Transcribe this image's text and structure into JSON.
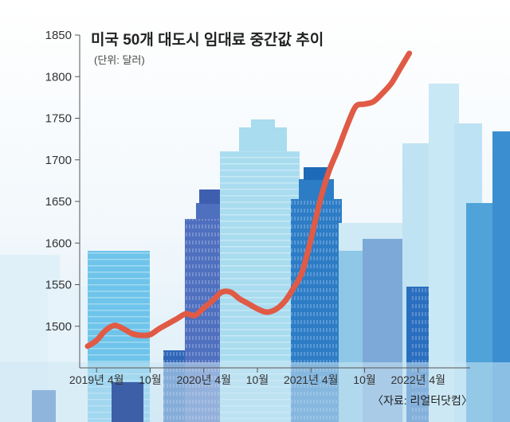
{
  "chart_data": {
    "type": "line",
    "title": "미국 50개 대도시 임대료 중간값 추이",
    "subtitle": "(단위: 달러)",
    "source": "〈자료: 리얼터닷컴〉",
    "ylim": [
      1450,
      1850
    ],
    "yticks": [
      1500,
      1550,
      1600,
      1650,
      1700,
      1750,
      1800,
      1850
    ],
    "xlim": [
      "2019-03",
      "2022-05"
    ],
    "xticks": [
      {
        "date": "2019-04",
        "label": "2019년 4월"
      },
      {
        "date": "2019-10",
        "label": "10월"
      },
      {
        "date": "2020-04",
        "label": "2020년 4월"
      },
      {
        "date": "2020-10",
        "label": "10월"
      },
      {
        "date": "2021-04",
        "label": "2021년 4월"
      },
      {
        "date": "2021-10",
        "label": "10월"
      },
      {
        "date": "2022-04",
        "label": "2022년 4월"
      }
    ],
    "series": [
      {
        "color": "#e05a45",
        "points": [
          {
            "x": "2019-03",
            "y": 1476
          },
          {
            "x": "2019-04",
            "y": 1483
          },
          {
            "x": "2019-05",
            "y": 1495
          },
          {
            "x": "2019-06",
            "y": 1501
          },
          {
            "x": "2019-07",
            "y": 1497
          },
          {
            "x": "2019-08",
            "y": 1491
          },
          {
            "x": "2019-09",
            "y": 1489
          },
          {
            "x": "2019-10",
            "y": 1490
          },
          {
            "x": "2019-11",
            "y": 1497
          },
          {
            "x": "2019-12",
            "y": 1503
          },
          {
            "x": "2020-01",
            "y": 1509
          },
          {
            "x": "2020-02",
            "y": 1515
          },
          {
            "x": "2020-03",
            "y": 1513
          },
          {
            "x": "2020-04",
            "y": 1522
          },
          {
            "x": "2020-05",
            "y": 1531
          },
          {
            "x": "2020-06",
            "y": 1541
          },
          {
            "x": "2020-07",
            "y": 1541
          },
          {
            "x": "2020-08",
            "y": 1533
          },
          {
            "x": "2020-09",
            "y": 1527
          },
          {
            "x": "2020-10",
            "y": 1521
          },
          {
            "x": "2020-11",
            "y": 1517
          },
          {
            "x": "2020-12",
            "y": 1520
          },
          {
            "x": "2021-01",
            "y": 1529
          },
          {
            "x": "2021-02",
            "y": 1545
          },
          {
            "x": "2021-03",
            "y": 1565
          },
          {
            "x": "2021-04",
            "y": 1605
          },
          {
            "x": "2021-05",
            "y": 1650
          },
          {
            "x": "2021-06",
            "y": 1686
          },
          {
            "x": "2021-07",
            "y": 1712
          },
          {
            "x": "2021-08",
            "y": 1740
          },
          {
            "x": "2021-09",
            "y": 1764
          },
          {
            "x": "2021-10",
            "y": 1767
          },
          {
            "x": "2021-11",
            "y": 1770
          },
          {
            "x": "2021-12",
            "y": 1780
          },
          {
            "x": "2022-01",
            "y": 1792
          },
          {
            "x": "2022-02",
            "y": 1810
          },
          {
            "x": "2022-03",
            "y": 1828
          }
        ]
      }
    ],
    "grid": false
  }
}
